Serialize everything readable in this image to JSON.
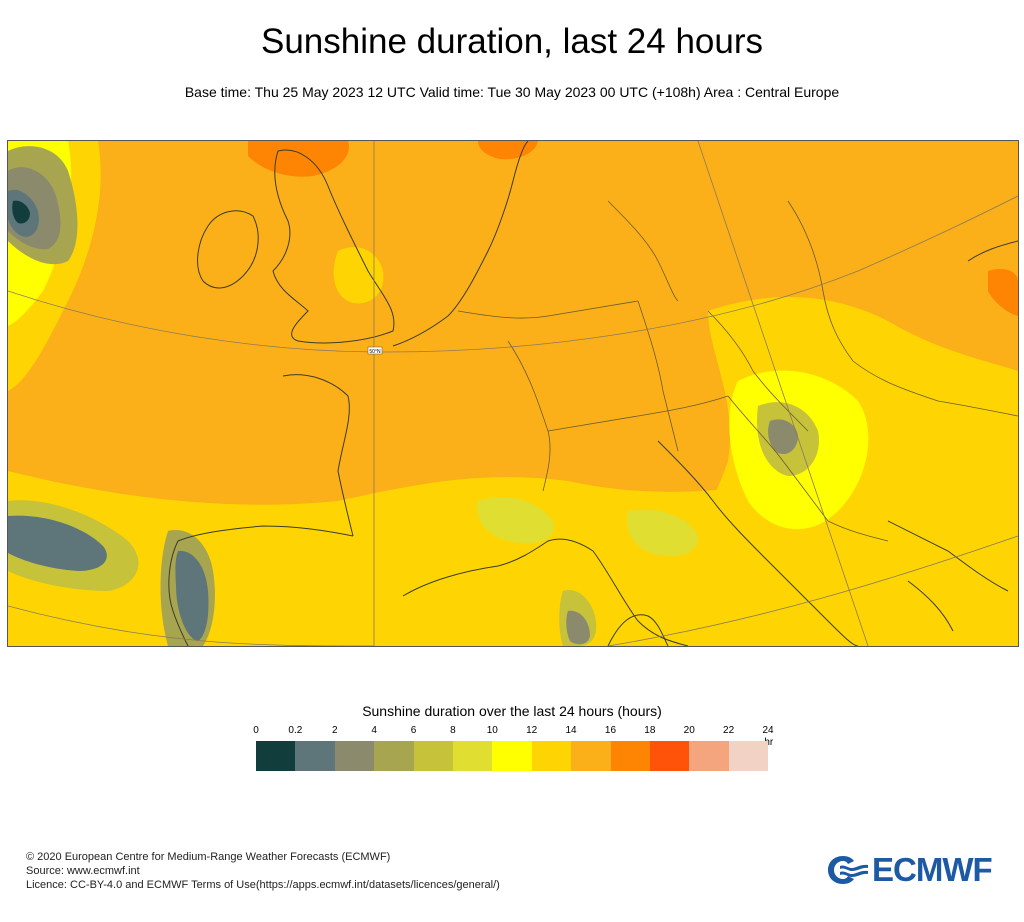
{
  "header": {
    "title": "Sunshine duration, last 24 hours",
    "subtitle": "Base time: Thu 25 May 2023 12 UTC Valid time: Tue 30 May 2023 00 UTC (+108h) Area : Central Europe"
  },
  "map": {
    "area": "Central Europe",
    "marker_label": "50°N"
  },
  "legend": {
    "title": "Sunshine duration over the last 24 hours (hours)",
    "unit": "-hr",
    "ticks": [
      "0",
      "0.2",
      "2",
      "4",
      "6",
      "8",
      "10",
      "12",
      "14",
      "16",
      "18",
      "20",
      "22",
      "24"
    ],
    "colors": [
      "#113d3c",
      "#5e7679",
      "#8c8a6d",
      "#a8a550",
      "#c6c23a",
      "#e0de30",
      "#ffff00",
      "#fed502",
      "#fbb01a",
      "#fe8403",
      "#fe5308",
      "#f4a57d",
      "#f1d2c4"
    ]
  },
  "footer": {
    "line1": "© 2020 European Centre for Medium-Range Weather Forecasts (ECMWF)",
    "line2": "Source: www.ecmwf.int",
    "line3": "Licence: CC-BY-4.0 and ECMWF Terms of Use(https://apps.ecmwf.int/datasets/licences/general/)"
  },
  "logo": {
    "text": "ECMWF",
    "color": "#1d5aa5"
  }
}
